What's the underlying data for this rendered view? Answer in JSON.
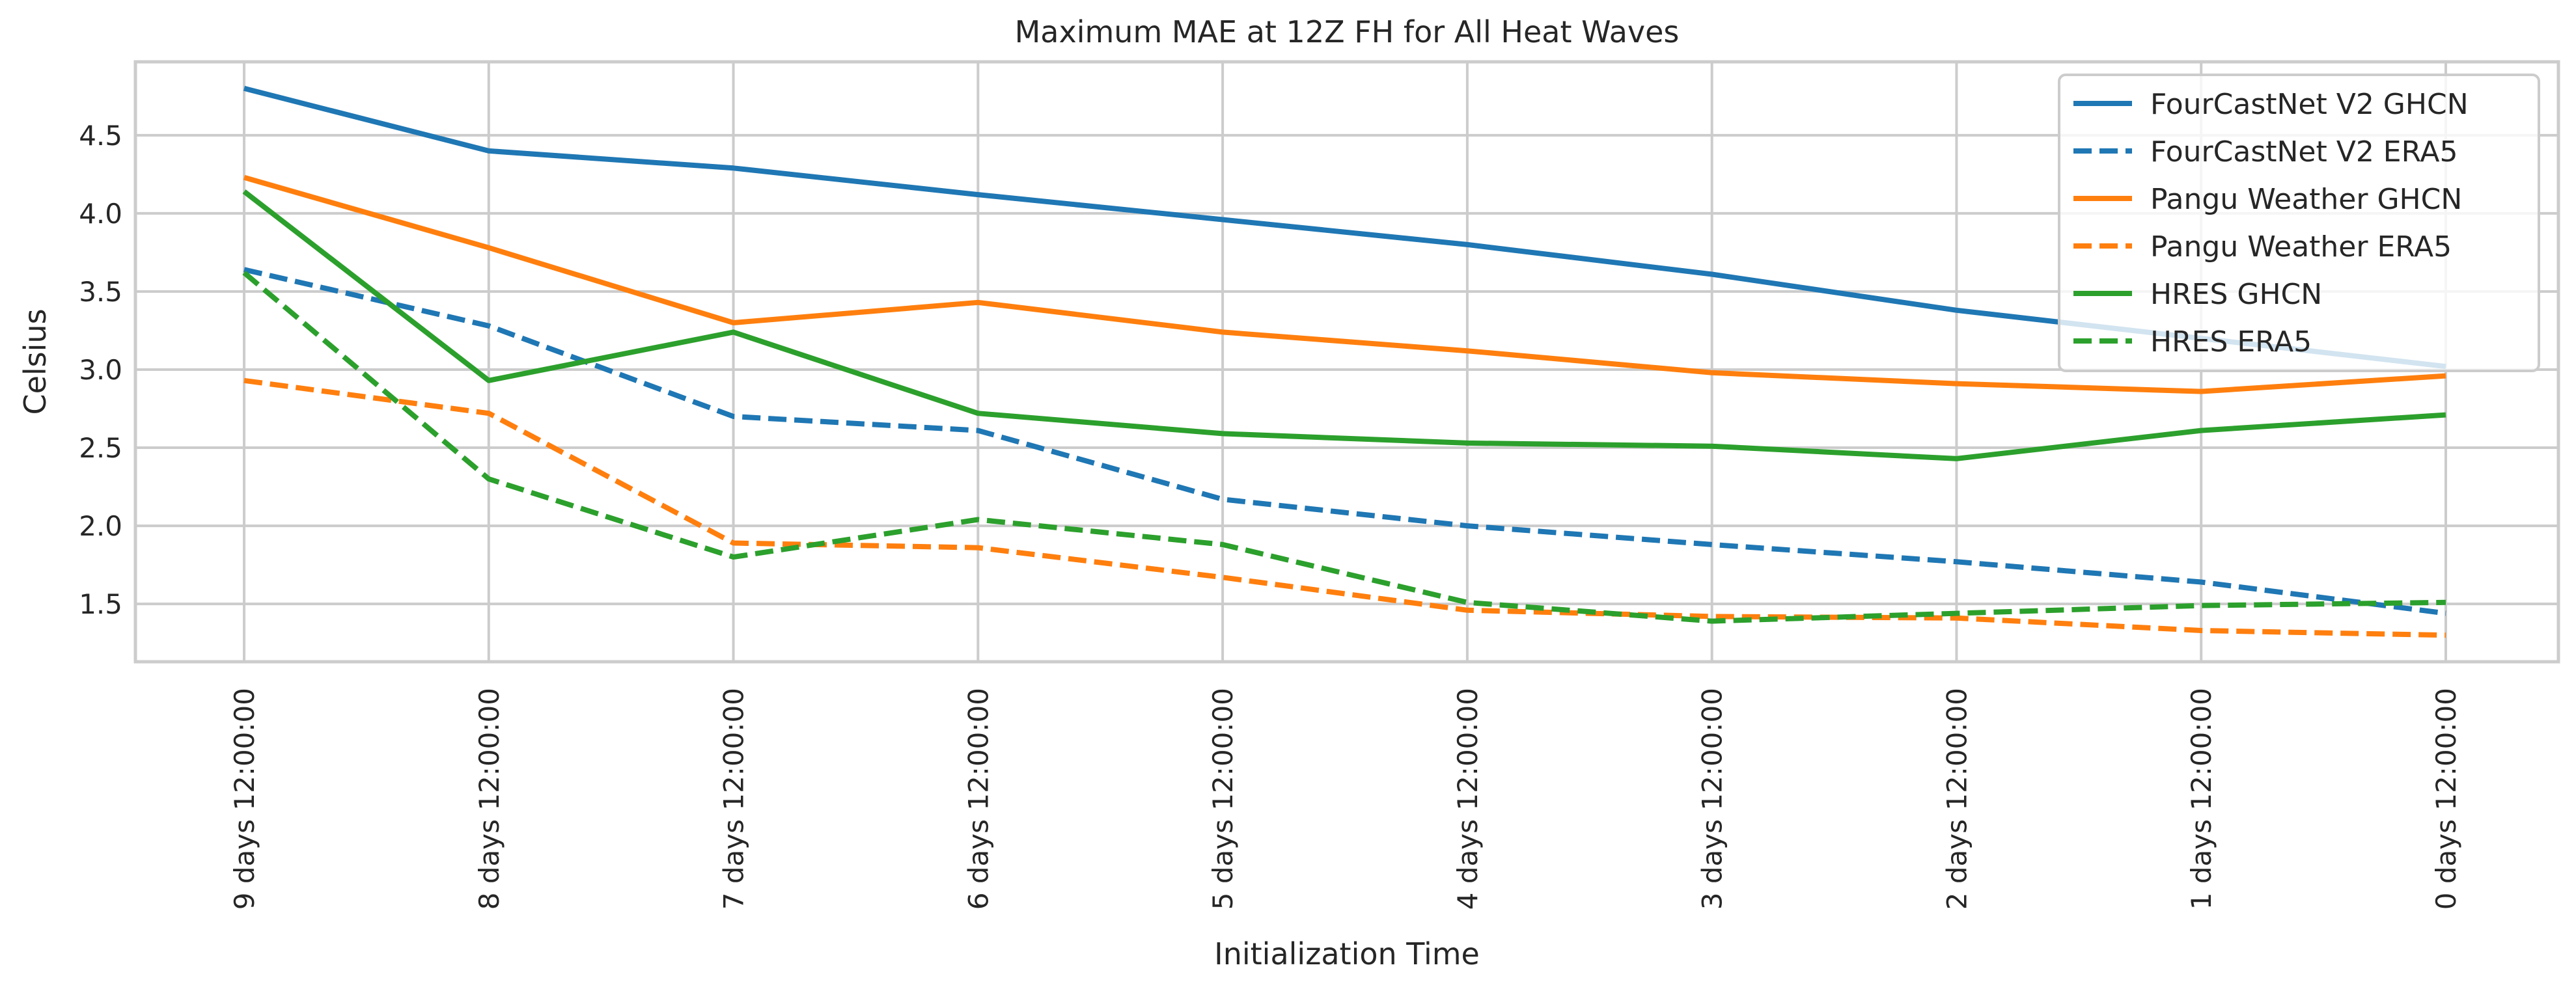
{
  "chart_data": {
    "type": "line",
    "title": "Maximum MAE at 12Z FH for All Heat Waves",
    "xlabel": "Initialization Time",
    "ylabel": "Celsius",
    "categories": [
      "9 days 12:00:00",
      "8 days 12:00:00",
      "7 days 12:00:00",
      "6 days 12:00:00",
      "5 days 12:00:00",
      "4 days 12:00:00",
      "3 days 12:00:00",
      "2 days 12:00:00",
      "1 days 12:00:00",
      "0 days 12:00:00"
    ],
    "yticks": [
      "1.5",
      "2.0",
      "2.5",
      "3.0",
      "3.5",
      "4.0",
      "4.5"
    ],
    "ylim": [
      1.13,
      4.97
    ],
    "grid": true,
    "legend_position": "top-right",
    "series": [
      {
        "name": "FourCastNet V2 GHCN",
        "color": "#1f77b4",
        "dash": false,
        "values": [
          4.8,
          4.4,
          4.29,
          4.12,
          3.96,
          3.8,
          3.61,
          3.38,
          3.2,
          3.02
        ]
      },
      {
        "name": "FourCastNet V2 ERA5",
        "color": "#1f77b4",
        "dash": true,
        "values": [
          3.64,
          3.28,
          2.7,
          2.61,
          2.17,
          2.0,
          1.88,
          1.77,
          1.64,
          1.44
        ]
      },
      {
        "name": "Pangu Weather GHCN",
        "color": "#ff7f0e",
        "dash": false,
        "values": [
          4.23,
          3.78,
          3.3,
          3.43,
          3.24,
          3.12,
          2.98,
          2.91,
          2.86,
          2.96
        ]
      },
      {
        "name": "Pangu Weather ERA5",
        "color": "#ff7f0e",
        "dash": true,
        "values": [
          2.93,
          2.72,
          1.89,
          1.86,
          1.67,
          1.46,
          1.42,
          1.41,
          1.33,
          1.3
        ]
      },
      {
        "name": "HRES GHCN",
        "color": "#2ca02c",
        "dash": false,
        "values": [
          4.14,
          2.93,
          3.24,
          2.72,
          2.59,
          2.53,
          2.51,
          2.43,
          2.61,
          2.71
        ]
      },
      {
        "name": "HRES ERA5",
        "color": "#2ca02c",
        "dash": true,
        "values": [
          3.62,
          2.3,
          1.8,
          2.04,
          1.88,
          1.51,
          1.39,
          1.44,
          1.49,
          1.51
        ]
      }
    ]
  }
}
